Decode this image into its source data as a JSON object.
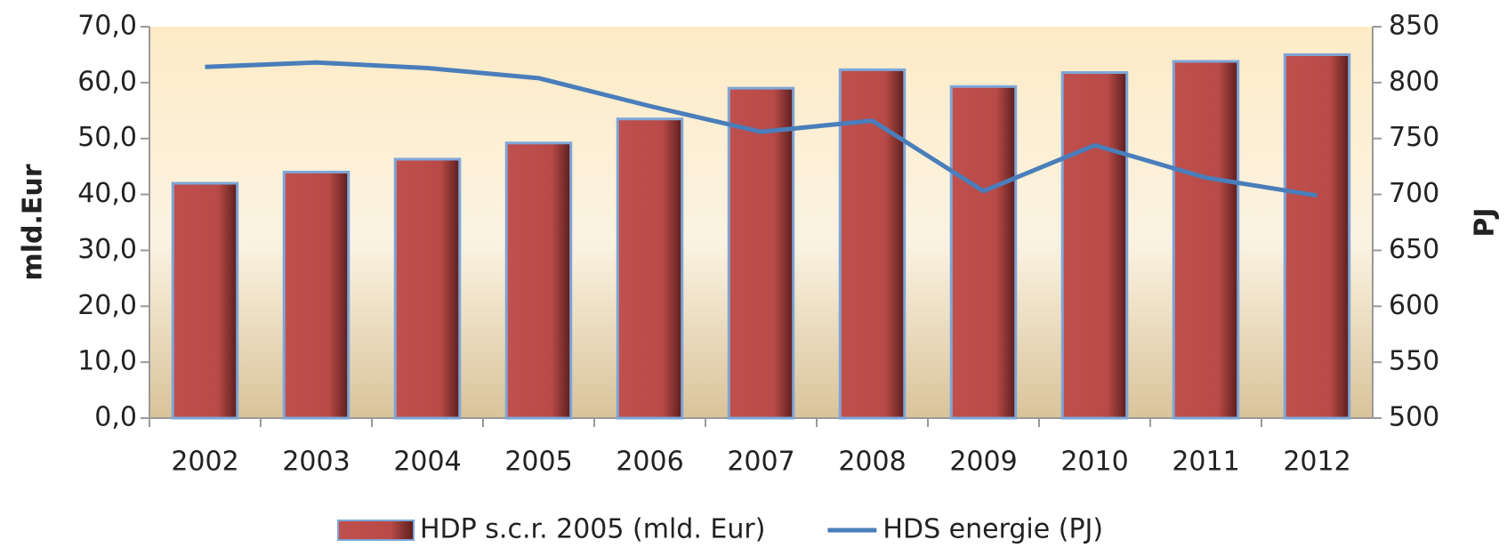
{
  "chart_data": {
    "type": "bar-line",
    "categories": [
      "2002",
      "2003",
      "2004",
      "2005",
      "2006",
      "2007",
      "2008",
      "2009",
      "2010",
      "2011",
      "2012"
    ],
    "series": [
      {
        "name": "HDP s.c.r. 2005 (mld. Eur)",
        "type": "bar",
        "color": "#c0504d",
        "axis": "y",
        "values": [
          42.0,
          44.0,
          46.3,
          49.2,
          53.5,
          59.0,
          62.3,
          59.3,
          61.8,
          63.8,
          65.0
        ]
      },
      {
        "name": "HDS energie  (PJ)",
        "type": "line",
        "color": "#4a7ebb",
        "axis": "y2",
        "values": [
          814,
          818,
          813,
          804,
          779,
          756,
          766,
          703,
          744,
          715,
          699
        ]
      }
    ],
    "ylabel": "mld.Eur",
    "y2label": "PJ",
    "ylim": [
      0,
      70
    ],
    "yticks": [
      {
        "value": 0,
        "label": "0,0"
      },
      {
        "value": 10,
        "label": "10,0"
      },
      {
        "value": 20,
        "label": "20,0"
      },
      {
        "value": 30,
        "label": "30,0"
      },
      {
        "value": 40,
        "label": "40,0"
      },
      {
        "value": 50,
        "label": "50,0"
      },
      {
        "value": 60,
        "label": "60,0"
      },
      {
        "value": 70,
        "label": "70,0"
      }
    ],
    "y2lim": [
      500,
      850
    ],
    "y2ticks": [
      500,
      550,
      600,
      650,
      700,
      750,
      800,
      850
    ],
    "legend": "bottom"
  }
}
